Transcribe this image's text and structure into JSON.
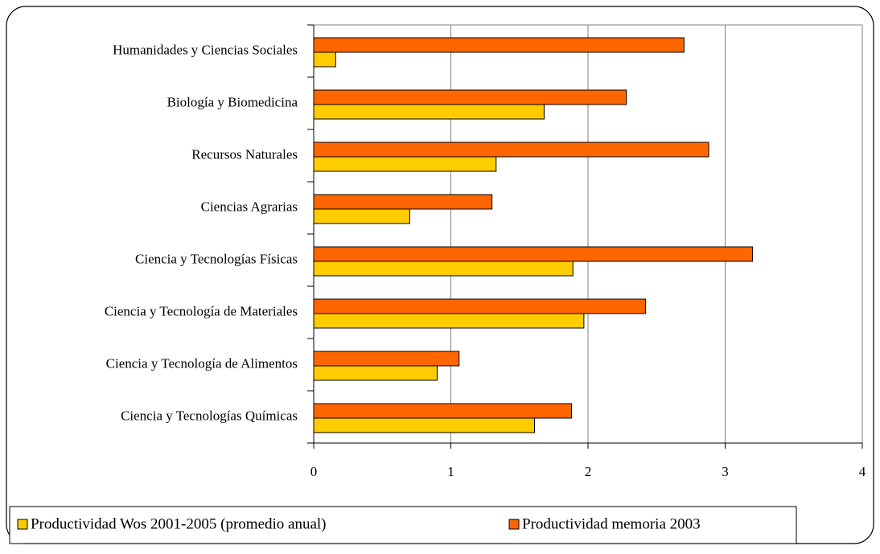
{
  "chart_data": {
    "type": "hbar",
    "categories": [
      "Humanidades y Ciencias Sociales",
      "Biología y Biomedicina",
      "Recursos Naturales",
      "Ciencias Agrarias",
      "Ciencia y Tecnologías Físicas",
      "Ciencia y Tecnología de Materiales",
      "Ciencia y Tecnología de Alimentos",
      "Ciencia y Tecnologías Químicas"
    ],
    "series": [
      {
        "name": "Productividad Wos 2001-2005 (promedio anual)",
        "color": "#ffcc00",
        "values": [
          0.16,
          1.68,
          1.33,
          0.7,
          1.89,
          1.97,
          0.9,
          1.61
        ]
      },
      {
        "name": "Productividad memoria 2003",
        "color": "#ff6600",
        "values": [
          2.7,
          2.28,
          2.88,
          1.3,
          3.2,
          2.42,
          1.06,
          1.88
        ]
      }
    ],
    "xlim": [
      0,
      4
    ],
    "xticks": [
      0,
      1,
      2,
      3,
      4
    ],
    "grid": true
  }
}
